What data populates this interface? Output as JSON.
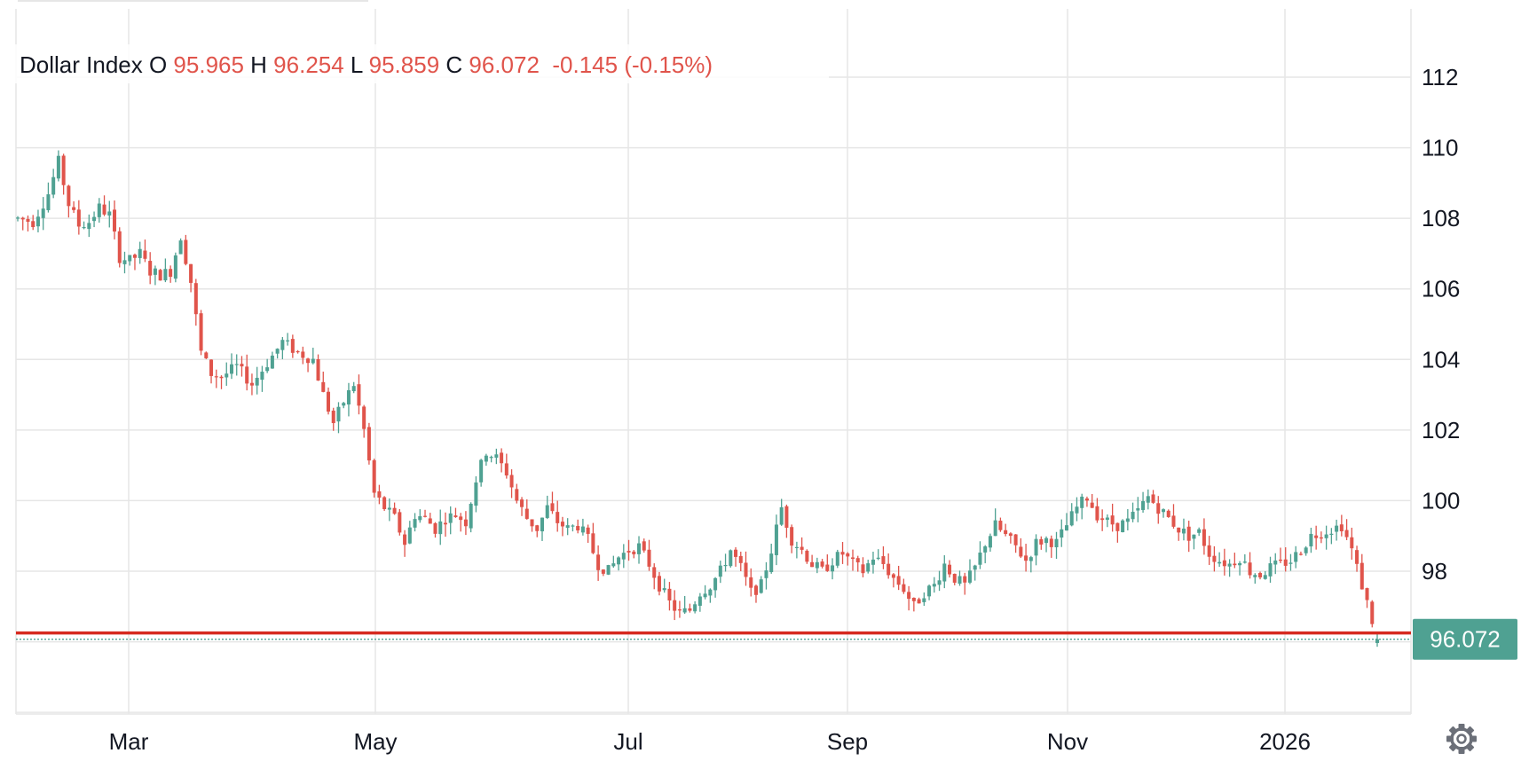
{
  "chart_data": {
    "type": "candlestick",
    "symbol": "Dollar Index",
    "ohlc_label": {
      "open_label": "O",
      "open": "95.965",
      "high_label": "H",
      "high": "96.254",
      "low_label": "L",
      "low": "95.859",
      "close_label": "C",
      "close": "96.072",
      "change": "-0.145 (-0.15%)"
    },
    "last_price_label": "96.072",
    "x_ticks": [
      "Mar",
      "May",
      "Jul",
      "Sep",
      "Nov",
      "2026"
    ],
    "y_ticks": [
      "98",
      "100",
      "102",
      "104",
      "106",
      "108",
      "110",
      "112"
    ],
    "y_range": [
      94,
      113
    ],
    "support_level": 96.25,
    "grid": true,
    "colors": {
      "up": "#4fa192",
      "down": "#e0544b",
      "support": "#d62b20",
      "grid": "#e6e6e6",
      "text": "#131722"
    },
    "series_profile": [
      [
        0,
        108.0
      ],
      [
        3,
        107.9
      ],
      [
        6,
        108.7
      ],
      [
        8,
        109.6
      ],
      [
        10,
        108.4
      ],
      [
        12,
        107.8
      ],
      [
        14,
        107.9
      ],
      [
        16,
        108.3
      ],
      [
        18,
        108.1
      ],
      [
        20,
        106.9
      ],
      [
        22,
        106.8
      ],
      [
        24,
        107.0
      ],
      [
        26,
        106.5
      ],
      [
        28,
        106.4
      ],
      [
        30,
        106.5
      ],
      [
        32,
        107.5
      ],
      [
        34,
        106.2
      ],
      [
        36,
        104.2
      ],
      [
        38,
        103.6
      ],
      [
        40,
        103.5
      ],
      [
        43,
        103.8
      ],
      [
        46,
        103.3
      ],
      [
        49,
        103.9
      ],
      [
        52,
        104.5
      ],
      [
        55,
        104.2
      ],
      [
        58,
        104.0
      ],
      [
        60,
        103.0
      ],
      [
        62,
        102.2
      ],
      [
        64,
        102.8
      ],
      [
        66,
        103.3
      ],
      [
        68,
        102.0
      ],
      [
        70,
        100.2
      ],
      [
        72,
        99.8
      ],
      [
        74,
        99.5
      ],
      [
        76,
        98.8
      ],
      [
        78,
        99.6
      ],
      [
        80,
        99.5
      ],
      [
        82,
        99.2
      ],
      [
        84,
        99.5
      ],
      [
        86,
        99.6
      ],
      [
        88,
        99.4
      ],
      [
        90,
        100.6
      ],
      [
        92,
        101.4
      ],
      [
        94,
        101.2
      ],
      [
        96,
        100.8
      ],
      [
        98,
        100.0
      ],
      [
        100,
        99.5
      ],
      [
        102,
        99.2
      ],
      [
        104,
        99.8
      ],
      [
        106,
        99.4
      ],
      [
        108,
        99.2
      ],
      [
        110,
        99.3
      ],
      [
        112,
        98.9
      ],
      [
        114,
        98.2
      ],
      [
        116,
        98.0
      ],
      [
        118,
        98.4
      ],
      [
        120,
        98.6
      ],
      [
        122,
        98.7
      ],
      [
        124,
        98.2
      ],
      [
        126,
        97.6
      ],
      [
        128,
        97.1
      ],
      [
        130,
        96.8
      ],
      [
        132,
        96.9
      ],
      [
        134,
        97.4
      ],
      [
        136,
        97.6
      ],
      [
        138,
        98.0
      ],
      [
        140,
        98.6
      ],
      [
        142,
        98.1
      ],
      [
        144,
        97.4
      ],
      [
        146,
        97.6
      ],
      [
        148,
        98.6
      ],
      [
        150,
        99.8
      ],
      [
        152,
        98.9
      ],
      [
        154,
        98.6
      ],
      [
        156,
        98.2
      ],
      [
        158,
        98.0
      ],
      [
        160,
        98.3
      ],
      [
        162,
        98.5
      ],
      [
        164,
        98.2
      ],
      [
        166,
        98.0
      ],
      [
        168,
        98.4
      ],
      [
        170,
        98.2
      ],
      [
        172,
        97.8
      ],
      [
        174,
        97.5
      ],
      [
        176,
        97.0
      ],
      [
        178,
        97.4
      ],
      [
        180,
        97.6
      ],
      [
        182,
        98.2
      ],
      [
        184,
        97.8
      ],
      [
        186,
        97.6
      ],
      [
        188,
        98.1
      ],
      [
        190,
        98.8
      ],
      [
        192,
        99.3
      ],
      [
        194,
        99.0
      ],
      [
        196,
        98.7
      ],
      [
        198,
        98.3
      ],
      [
        200,
        98.8
      ],
      [
        202,
        98.9
      ],
      [
        204,
        98.8
      ],
      [
        206,
        99.3
      ],
      [
        208,
        99.8
      ],
      [
        210,
        100.1
      ],
      [
        212,
        99.6
      ],
      [
        214,
        99.4
      ],
      [
        216,
        99.3
      ],
      [
        218,
        99.4
      ],
      [
        220,
        99.7
      ],
      [
        222,
        100.1
      ],
      [
        224,
        99.8
      ],
      [
        226,
        99.5
      ],
      [
        228,
        99.2
      ],
      [
        230,
        99.0
      ],
      [
        232,
        99.1
      ],
      [
        234,
        98.5
      ],
      [
        236,
        98.3
      ],
      [
        238,
        98.2
      ],
      [
        240,
        98.4
      ],
      [
        242,
        98.0
      ],
      [
        244,
        97.9
      ],
      [
        246,
        98.1
      ],
      [
        248,
        98.2
      ],
      [
        250,
        98.3
      ],
      [
        252,
        98.6
      ],
      [
        254,
        99.0
      ],
      [
        256,
        99.1
      ],
      [
        258,
        99.2
      ],
      [
        260,
        99.3
      ],
      [
        262,
        98.6
      ],
      [
        264,
        97.6
      ],
      [
        266,
        96.6
      ],
      [
        267,
        96.3
      ]
    ]
  }
}
